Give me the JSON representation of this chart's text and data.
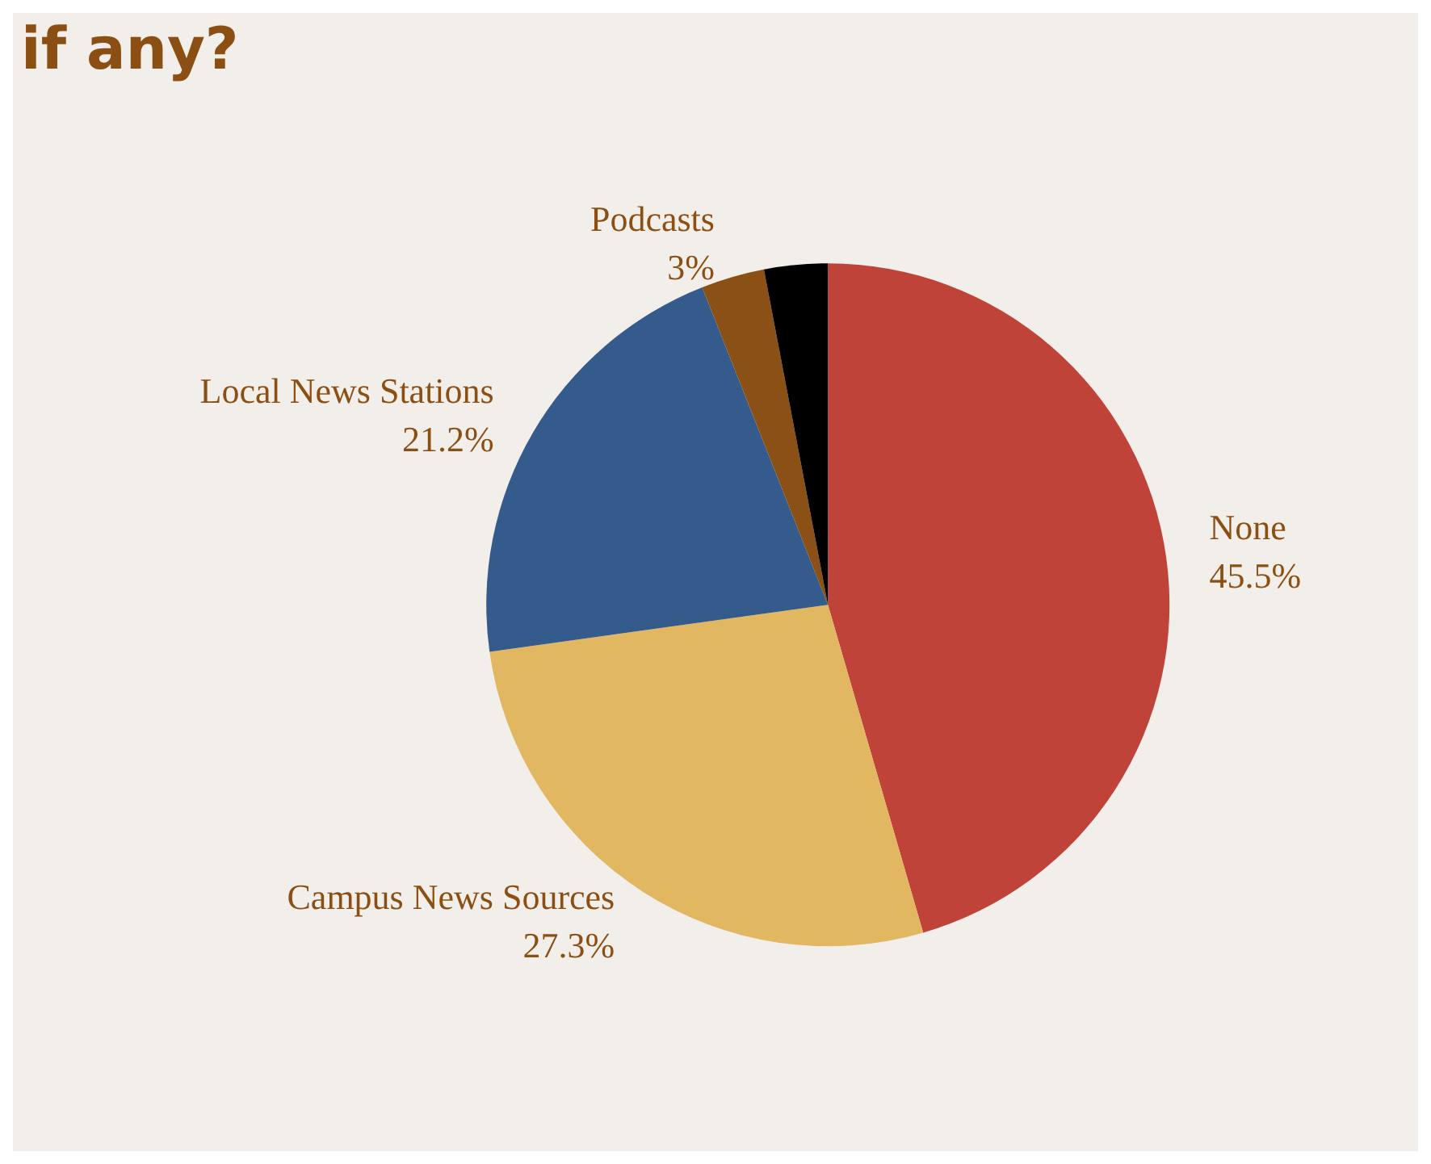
{
  "chart_data": {
    "type": "pie",
    "title": "if any?",
    "categories": [
      "None",
      "Campus News Sources",
      "Local News Stations",
      "Podcasts",
      null
    ],
    "values": [
      45.5,
      27.3,
      21.2,
      3,
      3
    ],
    "value_labels": [
      "45.5%",
      "27.3%",
      "21.2%",
      "3%",
      null
    ],
    "colors": [
      "#c0433a",
      "#e1b762",
      "#355b8c",
      "#8b5016",
      "#000000"
    ],
    "legend": false
  }
}
